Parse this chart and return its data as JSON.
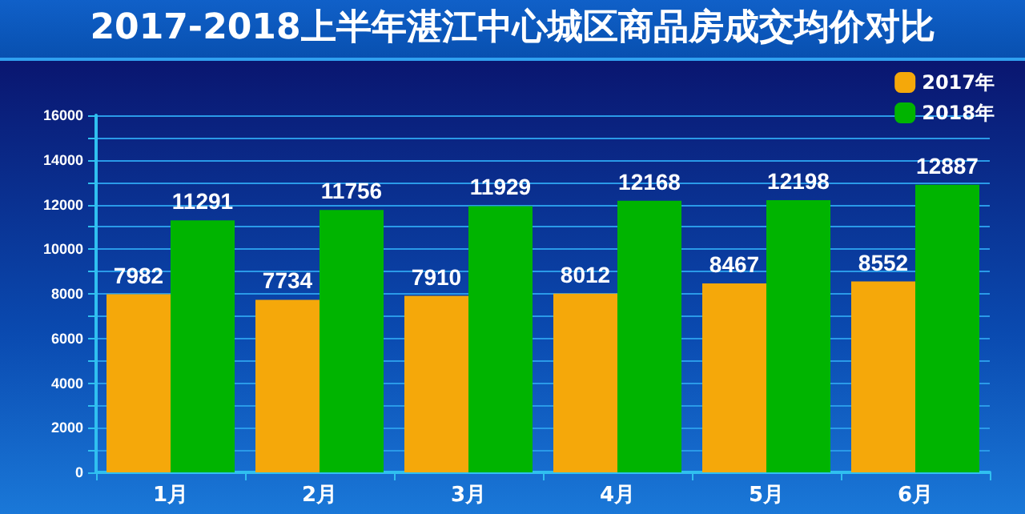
{
  "chart_data": {
    "type": "bar",
    "title": "2017-2018上半年湛江中心城区商品房成交均价对比",
    "categories": [
      "1月",
      "2月",
      "3月",
      "4月",
      "5月",
      "6月"
    ],
    "series": [
      {
        "name": "2017年",
        "color": "#f5a80a",
        "values": [
          7982,
          7734,
          7910,
          8012,
          8467,
          8552
        ]
      },
      {
        "name": "2018年",
        "color": "#00b400",
        "values": [
          11291,
          11756,
          11929,
          12168,
          12198,
          12887
        ]
      }
    ],
    "ylim": [
      0,
      16000
    ],
    "yticks": [
      0,
      {
        "value": 1000,
        "label": null
      },
      2000,
      {
        "value": 3000,
        "label": null
      },
      4000,
      {
        "value": 5000,
        "label": null
      },
      6000,
      {
        "value": 7000,
        "label": null
      },
      8000,
      {
        "value": 9000,
        "label": null
      },
      10000,
      {
        "value": 11000,
        "label": null
      },
      12000,
      {
        "value": 13000,
        "label": null
      },
      14000,
      {
        "value": 15000,
        "label": null
      },
      16000
    ],
    "grid": "y",
    "legend": "top right",
    "data_labels": true
  }
}
